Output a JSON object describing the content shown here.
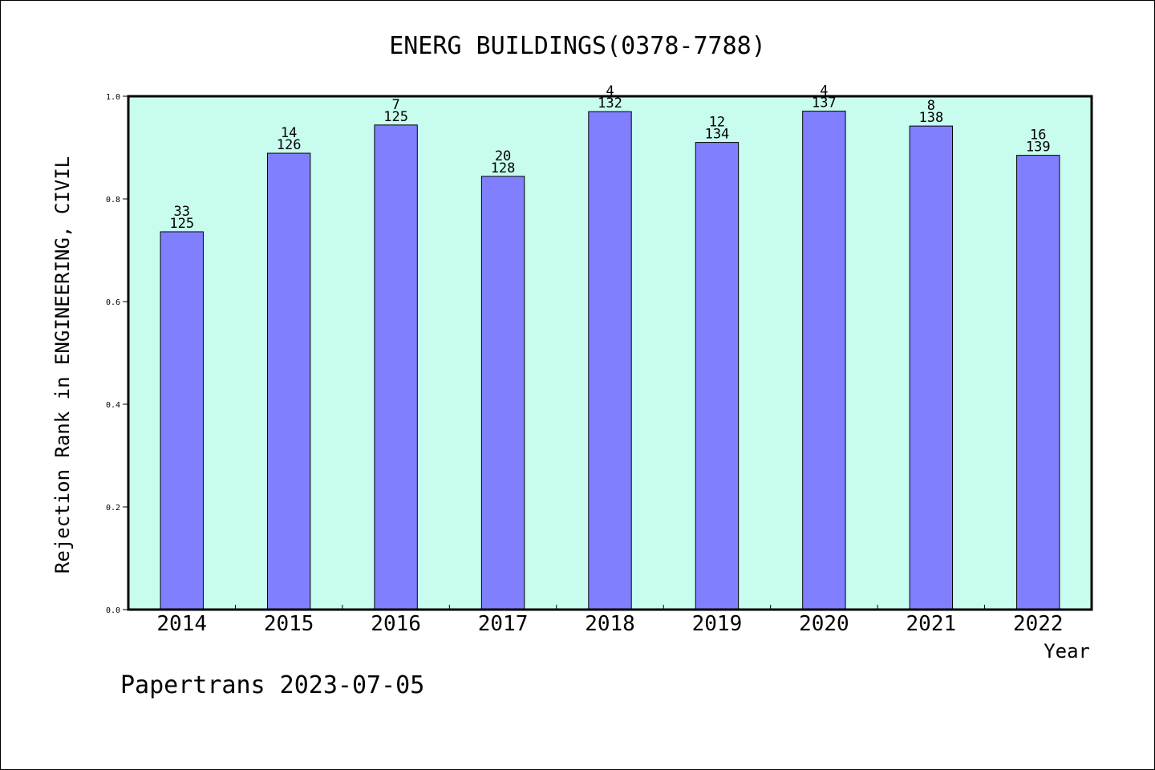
{
  "chart_data": {
    "type": "bar",
    "title": "ENERG BUILDINGS(0378-7788)",
    "xlabel": "Year",
    "ylabel": "Rejection Rank in ENGINEERING, CIVIL",
    "categories": [
      "2014",
      "2015",
      "2016",
      "2017",
      "2018",
      "2019",
      "2020",
      "2021",
      "2022"
    ],
    "values": [
      0.736,
      0.889,
      0.944,
      0.844,
      0.97,
      0.91,
      0.971,
      0.942,
      0.885
    ],
    "labels_top": [
      "33",
      "14",
      "7",
      "20",
      "4",
      "12",
      "4",
      "8",
      "16"
    ],
    "labels_bottom": [
      "125",
      "126",
      "125",
      "128",
      "132",
      "134",
      "137",
      "138",
      "139"
    ],
    "ylim": [
      0,
      1
    ],
    "yticks": [
      "0.0",
      "0.2",
      "0.4",
      "0.6",
      "0.8",
      "1.0"
    ],
    "grid": false,
    "colors": {
      "bar": "#8080ff",
      "plot_bg": "#c8fcee",
      "axis": "#000000"
    }
  },
  "footer": "Papertrans 2023-07-05"
}
